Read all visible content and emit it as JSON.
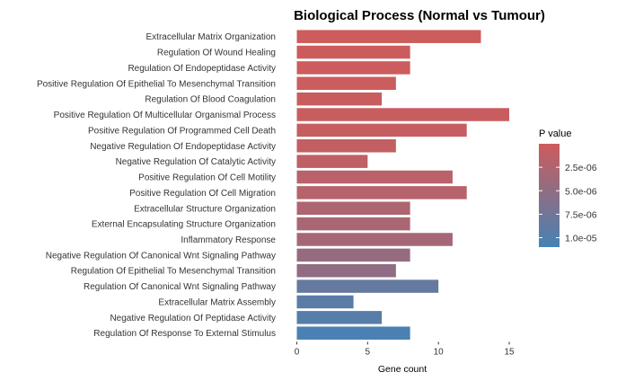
{
  "chart_data": {
    "type": "bar",
    "orientation": "horizontal",
    "title": "Biological Process (Normal vs Tumour)",
    "xlabel": "Gene count",
    "ylabel": "",
    "xlim": [
      0,
      16
    ],
    "x_ticks": [
      0,
      5,
      10,
      15
    ],
    "grid": false,
    "categories": [
      "Extracellular Matrix Organization",
      "Regulation Of Wound Healing",
      "Regulation Of Endopeptidase Activity",
      "Positive Regulation Of Epithelial To Mesenchymal Transition",
      "Regulation Of Blood Coagulation",
      "Positive Regulation Of Multicellular Organismal Process",
      "Positive Regulation Of Programmed Cell Death",
      "Negative Regulation Of Endopeptidase Activity",
      "Negative Regulation Of Catalytic Activity",
      "Positive Regulation Of Cell Motility",
      "Positive Regulation Of Cell Migration",
      "Extracellular Structure Organization",
      "External Encapsulating Structure Organization",
      "Inflammatory Response",
      "Negative Regulation Of Canonical Wnt Signaling Pathway",
      "Regulation Of Epithelial To Mesenchymal Transition",
      "Regulation Of Canonical Wnt Signaling Pathway",
      "Extracellular Matrix Assembly",
      "Negative Regulation Of Peptidase Activity",
      "Regulation Of Response To External Stimulus"
    ],
    "values": [
      13,
      8,
      8,
      7,
      6,
      15,
      12,
      7,
      5,
      11,
      12,
      8,
      8,
      11,
      8,
      7,
      10,
      4,
      6,
      8
    ],
    "p_values": [
      1e-08,
      5e-08,
      1e-07,
      2e-07,
      3e-07,
      4e-07,
      6e-07,
      8e-07,
      1.2e-06,
      1.6e-06,
      1.9e-06,
      2.6e-06,
      2.9e-06,
      3.3e-06,
      4.4e-06,
      5e-06,
      8.4e-06,
      9.4e-06,
      9.6e-06,
      1.07e-05
    ],
    "legend": {
      "title": "P value",
      "position": "right",
      "labels": [
        "2.5e-06",
        "5.0e-06",
        "7.5e-06",
        "1.0e-05"
      ],
      "values": [
        2.5e-06,
        5e-06,
        7.5e-06,
        1e-05
      ],
      "range": [
        0,
        1.1e-05
      ],
      "color_low_p": "#CD5C5C",
      "color_high_p": "#4682B4"
    }
  }
}
